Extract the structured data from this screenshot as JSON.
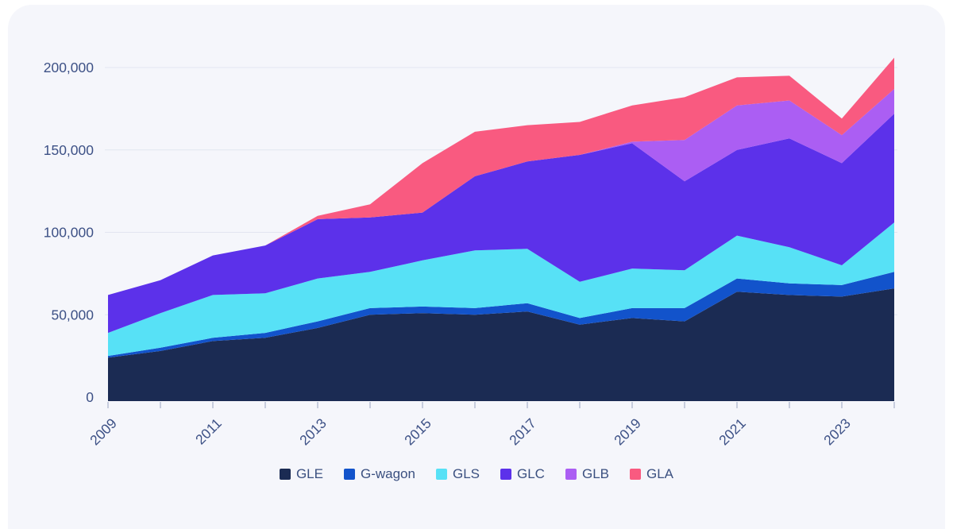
{
  "chart_data": {
    "type": "area",
    "stacked": true,
    "title": "",
    "x": [
      2009,
      2010,
      2011,
      2012,
      2013,
      2014,
      2015,
      2016,
      2017,
      2018,
      2019,
      2020,
      2021,
      2022,
      2023,
      2024
    ],
    "x_label_step": 2,
    "y_ticks": [
      0,
      50000,
      100000,
      150000,
      200000
    ],
    "y_tick_labels": [
      "0",
      "50,000",
      "100,000",
      "150,000",
      "200,000"
    ],
    "ylim": [
      0,
      200000
    ],
    "grid": "horizontal",
    "legend_position": "bottom",
    "series": [
      {
        "name": "GLE",
        "color": "#1b2b53",
        "values": [
          24000,
          28000,
          34000,
          36000,
          42000,
          50000,
          51000,
          50000,
          52000,
          44000,
          48000,
          46000,
          64000,
          62000,
          61000,
          66000
        ]
      },
      {
        "name": "G-wagon",
        "color": "#1253cb",
        "values": [
          1000,
          2000,
          2000,
          3000,
          4000,
          4000,
          4000,
          4000,
          5000,
          4000,
          6000,
          8000,
          8000,
          7000,
          7000,
          10000
        ]
      },
      {
        "name": "GLS",
        "color": "#57e1f6",
        "values": [
          14000,
          21000,
          26000,
          24000,
          26000,
          22000,
          28000,
          35000,
          33000,
          22000,
          24000,
          23000,
          26000,
          22000,
          12000,
          30000
        ]
      },
      {
        "name": "GLC",
        "color": "#5c31ea",
        "values": [
          23000,
          20000,
          24000,
          29000,
          36000,
          33000,
          29000,
          45000,
          53000,
          77000,
          76000,
          54000,
          52000,
          66000,
          62000,
          66000
        ]
      },
      {
        "name": "GLB",
        "color": "#ab5ef3",
        "values": [
          0,
          0,
          0,
          0,
          0,
          0,
          0,
          0,
          0,
          0,
          1000,
          25000,
          27000,
          23000,
          17000,
          15000
        ]
      },
      {
        "name": "GLA",
        "color": "#f95a80",
        "values": [
          0,
          0,
          0,
          0,
          2000,
          8000,
          30000,
          27000,
          22000,
          20000,
          22000,
          26000,
          17000,
          15000,
          10000,
          19000
        ]
      }
    ]
  },
  "colors": {
    "page_bg": "#ffffff",
    "card_bg": "#f5f6fb",
    "grid": "#e2e5f0",
    "axis_line": "#1b2b53",
    "tick": "#c7cdde",
    "axis_label": "#3d5186",
    "legend_text": "#3b5080"
  }
}
